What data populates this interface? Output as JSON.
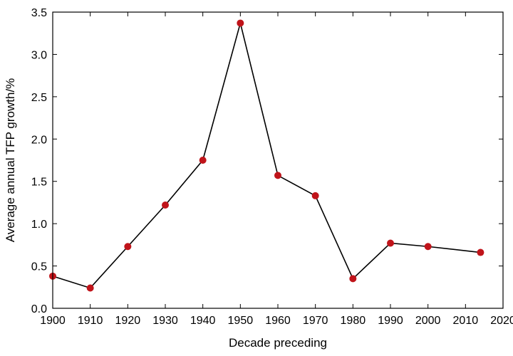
{
  "chart_data": {
    "type": "line",
    "title": "",
    "xlabel": "Decade preceding",
    "ylabel": "Average annual TFP growth/%",
    "xlim": [
      1900,
      2020
    ],
    "ylim": [
      0,
      3.5
    ],
    "xticks": [
      1900,
      1910,
      1920,
      1930,
      1940,
      1950,
      1960,
      1970,
      1980,
      1990,
      2000,
      2010,
      2020
    ],
    "yticks": [
      "0.0",
      "0.5",
      "1.0",
      "1.5",
      "2.0",
      "2.5",
      "3.0",
      "3.5"
    ],
    "grid": false,
    "legend": "none",
    "series": [
      {
        "x": [
          1900,
          1910,
          1920,
          1930,
          1940,
          1950,
          1960,
          1970,
          1980,
          1990,
          2000,
          2014
        ],
        "y": [
          0.38,
          0.24,
          0.73,
          1.22,
          1.75,
          3.37,
          1.57,
          1.33,
          0.35,
          0.77,
          0.73,
          0.66
        ],
        "line_color": "#000000",
        "marker_color": "#c0141a"
      }
    ]
  }
}
